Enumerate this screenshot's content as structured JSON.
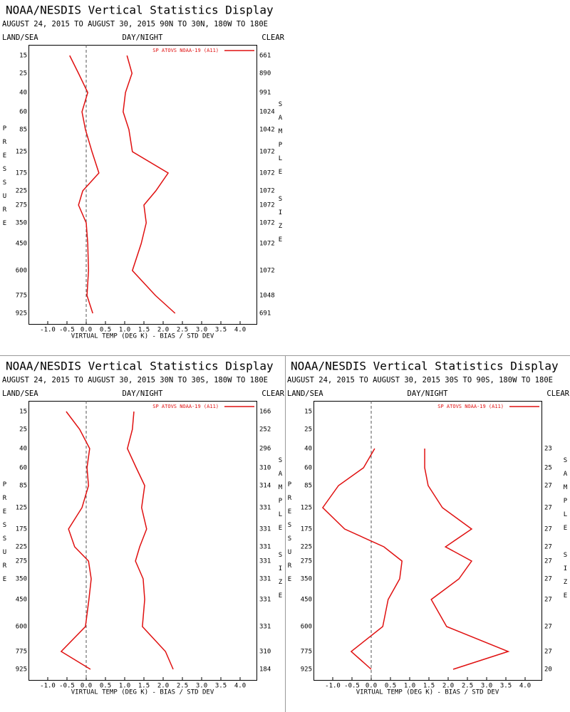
{
  "chart_data": [
    {
      "type": "line",
      "title": "NOAA/NESDIS Vertical Statistics Display",
      "subtitle": "AUGUST 24, 2015 TO AUGUST 30, 2015 90N TO 30N, 180W TO 180E",
      "land_sea_label": "LAND/SEA",
      "day_night_label": "DAY/NIGHT",
      "clear_label": "CLEAR",
      "ylabel": "PRESSURE",
      "y2label": "SAMPLE SIZE",
      "xlabel": "VIRTUAL TEMP (DEG K) - BIAS / STD DEV",
      "legend": "SP ATOVS NOAA-19 (A11)",
      "categories": [
        15,
        25,
        40,
        60,
        85,
        125,
        175,
        225,
        275,
        350,
        450,
        600,
        775,
        925
      ],
      "xlim": [
        -1.5,
        4.5
      ],
      "xticks": [
        {
          "value": -1,
          "label": "-1.0"
        },
        {
          "value": -0.5,
          "label": "-0.5"
        },
        {
          "value": 0,
          "label": "0.0"
        },
        0.5,
        {
          "value": 1,
          "label": "1.0"
        },
        1.5,
        {
          "value": 2,
          "label": "2.0"
        },
        2.5,
        {
          "value": 3,
          "label": "3.0"
        },
        3.5,
        {
          "value": 4,
          "label": "4.0"
        }
      ],
      "zero_line": true,
      "series": [
        {
          "color": "#e01010",
          "values": [
            -0.43,
            -0.2,
            0.04,
            -0.11,
            -0.02,
            0.15,
            0.33,
            -0.09,
            -0.2,
            0.0,
            0.04,
            0.06,
            0.02,
            0.17
          ]
        },
        {
          "color": "#e01010",
          "values": [
            1.06,
            1.19,
            1.02,
            0.96,
            1.11,
            1.2,
            2.13,
            1.81,
            1.5,
            1.56,
            1.43,
            1.2,
            1.8,
            2.31
          ]
        }
      ],
      "sample_sizes": [
        661,
        890,
        991,
        1024,
        1042,
        1072,
        1072,
        1072,
        1072,
        1072,
        1072,
        1072,
        1048,
        691
      ]
    },
    {
      "type": "line",
      "title": "NOAA/NESDIS Vertical Statistics Display",
      "subtitle": "AUGUST 24, 2015 TO AUGUST 30, 2015 30N TO 30S, 180W TO 180E",
      "land_sea_label": "LAND/SEA",
      "day_night_label": "DAY/NIGHT",
      "clear_label": "CLEAR",
      "ylabel": "PRESSURE",
      "y2label": "SAMPLE SIZE",
      "xlabel": "VIRTUAL TEMP (DEG K) - BIAS / STD DEV",
      "legend": "SP ATOVS NOAA-19 (A11)",
      "categories": [
        15,
        25,
        40,
        60,
        85,
        125,
        175,
        225,
        275,
        350,
        450,
        600,
        775,
        925
      ],
      "xlim": [
        -1.5,
        4.5
      ],
      "xticks": [
        {
          "value": -1,
          "label": "-1.0"
        },
        {
          "value": -0.5,
          "label": "-0.5"
        },
        {
          "value": 0,
          "label": "0.0"
        },
        0.5,
        {
          "value": 1,
          "label": "1.0"
        },
        1.5,
        {
          "value": 2,
          "label": "2.0"
        },
        2.5,
        {
          "value": 3,
          "label": "3.0"
        },
        3.5,
        {
          "value": 4,
          "label": "4.0"
        }
      ],
      "zero_line": true,
      "series": [
        {
          "color": "#e01010",
          "values": [
            -0.52,
            -0.17,
            0.09,
            0.02,
            0.06,
            -0.11,
            -0.46,
            -0.3,
            0.06,
            0.13,
            0.07,
            -0.02,
            -0.65,
            0.11
          ]
        },
        {
          "color": "#e01010",
          "values": [
            1.24,
            1.2,
            1.07,
            1.3,
            1.52,
            1.44,
            1.57,
            1.39,
            1.28,
            1.48,
            1.52,
            1.46,
            2.06,
            2.26
          ]
        }
      ],
      "sample_sizes": [
        166,
        252,
        296,
        310,
        314,
        331,
        331,
        331,
        331,
        331,
        331,
        331,
        310,
        184
      ]
    },
    {
      "type": "line",
      "title": "NOAA/NESDIS Vertical Statistics Display",
      "subtitle": "AUGUST 24, 2015 TO AUGUST 30, 2015 30S TO 90S, 180W TO 180E",
      "land_sea_label": "LAND/SEA",
      "day_night_label": "DAY/NIGHT",
      "clear_label": "CLEAR",
      "ylabel": "PRESSURE",
      "y2label": "SAMPLE SIZE",
      "xlabel": "VIRTUAL TEMP (DEG K) - BIAS / STD DEV",
      "legend": "SP ATOVS NOAA-19 (A11)",
      "categories": [
        15,
        25,
        40,
        60,
        85,
        125,
        175,
        225,
        275,
        350,
        450,
        600,
        775,
        925
      ],
      "xlim": [
        -1.5,
        4.5
      ],
      "xticks": [
        {
          "value": -1,
          "label": "-1.0"
        },
        {
          "value": -0.5,
          "label": "-0.5"
        },
        {
          "value": 0,
          "label": "0.0"
        },
        0.5,
        {
          "value": 1,
          "label": "1.0"
        },
        1.5,
        {
          "value": 2,
          "label": "2.0"
        },
        2.5,
        {
          "value": 3,
          "label": "3.0"
        },
        3.5,
        {
          "value": 4,
          "label": "4.0"
        }
      ],
      "zero_line": true,
      "series": [
        {
          "color": "#e01010",
          "values": [
            null,
            null,
            0.09,
            -0.2,
            -0.85,
            -1.26,
            -0.69,
            0.33,
            0.8,
            0.74,
            0.44,
            0.3,
            -0.52,
            0.0
          ]
        },
        {
          "color": "#e01010",
          "values": [
            null,
            null,
            1.39,
            1.39,
            1.48,
            1.85,
            2.61,
            1.93,
            2.61,
            2.28,
            1.56,
            1.96,
            3.56,
            2.13
          ]
        }
      ],
      "sample_sizes": [
        null,
        null,
        23,
        25,
        27,
        27,
        27,
        27,
        27,
        27,
        27,
        27,
        27,
        20
      ]
    }
  ]
}
